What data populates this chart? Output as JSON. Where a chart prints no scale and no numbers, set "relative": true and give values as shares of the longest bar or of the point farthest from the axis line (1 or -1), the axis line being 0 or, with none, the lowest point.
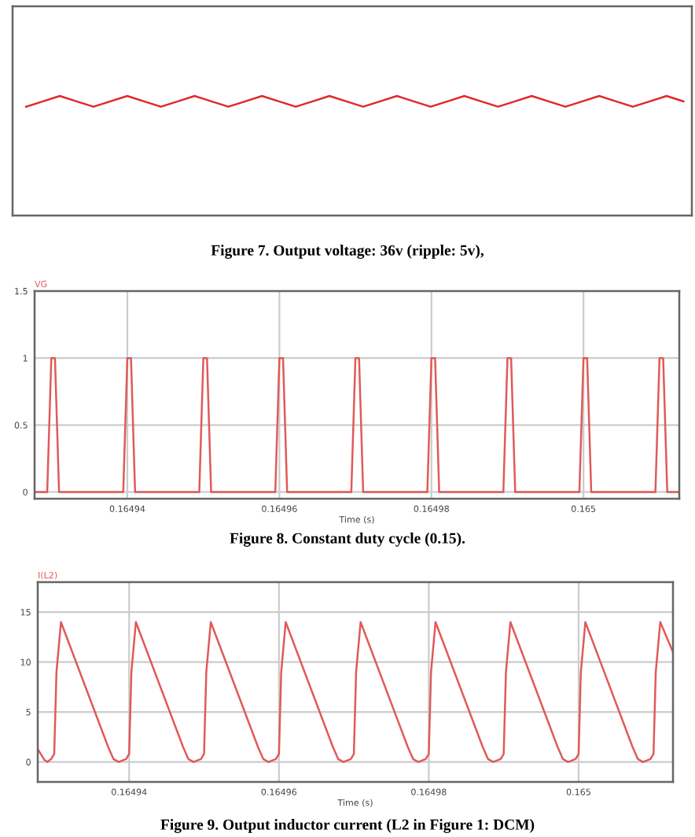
{
  "chart_data": [
    {
      "type": "line",
      "title": "Figure 7. Output voltage: 36v (ripple: 5v),",
      "relative": true,
      "categories": [
        null,
        null,
        null,
        null,
        null,
        null,
        null,
        null,
        null,
        null,
        null,
        null,
        null,
        null,
        null,
        null,
        null,
        null,
        null,
        null,
        null,
        null,
        null,
        null,
        null,
        null,
        null,
        null,
        null,
        null,
        null,
        null,
        null,
        null,
        null,
        null,
        null,
        null,
        null,
        null
      ],
      "series": [
        {
          "color": "#e02828",
          "values": [
            0.91,
            0.955,
            1,
            0.955,
            0.91,
            0.955,
            1,
            0.955,
            0.91,
            0.955,
            1,
            0.955,
            0.91,
            0.955,
            1,
            0.955,
            0.91,
            0.955,
            1,
            0.955,
            0.91,
            0.955,
            1,
            0.955,
            0.91,
            0.955,
            1,
            0.955,
            0.91,
            0.955,
            1,
            0.955,
            0.91,
            0.955,
            1,
            0.955,
            0.91,
            0.955,
            1,
            0.955
          ]
        }
      ]
    },
    {
      "type": "line",
      "title": "Figure 8. Constant duty cycle (0.15).",
      "xlabel": "Time (s)",
      "x": [
        0.1649278,
        0.16492946,
        0.16493,
        0.16493048,
        0.16493102,
        0.16493946,
        0.16494,
        0.16494048,
        0.16494102,
        0.16494946,
        0.16495,
        0.16495048,
        0.16495102,
        0.16495946,
        0.16496,
        0.16496048,
        0.16496102,
        0.16496946,
        0.16497,
        0.16497048,
        0.16497102,
        0.16497946,
        0.16498,
        0.16498048,
        0.16498102,
        0.16498946,
        0.16499,
        0.16499048,
        0.16499102,
        0.16499946,
        0.165,
        0.16500048,
        0.16500102,
        0.16500946,
        0.16501,
        0.16501048,
        0.16501102,
        0.1650126
      ],
      "series": [
        {
          "name": "VG",
          "color": "#e05a5a",
          "values": [
            0,
            0,
            1,
            1,
            0,
            0,
            1,
            1,
            0,
            0,
            1,
            1,
            0,
            0,
            1,
            1,
            0,
            0,
            1,
            1,
            0,
            0,
            1,
            1,
            0,
            0,
            1,
            1,
            0,
            0,
            1,
            1,
            0,
            0,
            1,
            1,
            0,
            0
          ]
        }
      ],
      "xlim": [
        0.1649278,
        0.1650126
      ],
      "xticks": [
        0.16494,
        0.16496,
        0.16498,
        0.165
      ],
      "ylim": [
        -0.05,
        1.5
      ],
      "yticks": [
        0,
        0.5,
        1,
        1.5
      ],
      "grid": true
    },
    {
      "type": "line",
      "title": "Figure 9. Output inductor current (L2 in Figure 1: DCM)",
      "xlabel": "Time (s)",
      "x": [
        0.1649278,
        0.1649287,
        0.1649291,
        0.1649296,
        0.16493,
        0.1649303,
        0.1649309,
        0.1649372,
        0.1649379,
        0.1649386,
        0.1649396,
        0.16494,
        0.1649403,
        0.1649409,
        0.1649472,
        0.1649479,
        0.1649486,
        0.1649496,
        0.16495,
        0.1649503,
        0.1649509,
        0.1649572,
        0.1649579,
        0.1649586,
        0.1649596,
        0.16496,
        0.1649603,
        0.1649609,
        0.1649672,
        0.1649679,
        0.1649686,
        0.1649696,
        0.16497,
        0.1649703,
        0.1649709,
        0.1649772,
        0.1649779,
        0.1649786,
        0.1649796,
        0.16498,
        0.1649803,
        0.1649809,
        0.1649872,
        0.1649879,
        0.1649886,
        0.1649896,
        0.16499,
        0.1649903,
        0.1649909,
        0.1649972,
        0.1649979,
        0.1649986,
        0.1649996,
        0.165,
        0.1650003,
        0.1650009,
        0.1650072,
        0.1650079,
        0.1650086,
        0.1650096,
        0.16501,
        0.1650103,
        0.1650109,
        0.1650126
      ],
      "series": [
        {
          "name": "I(L2)",
          "color": "#e05a5a",
          "values": [
            1.3,
            0.2,
            0,
            0.3,
            0.8,
            9,
            14,
            1.5,
            0.3,
            0,
            0.3,
            0.8,
            9,
            14,
            1.5,
            0.3,
            0,
            0.3,
            0.8,
            9,
            14,
            1.5,
            0.3,
            0,
            0.3,
            0.8,
            9,
            14,
            1.5,
            0.3,
            0,
            0.3,
            0.8,
            9,
            14,
            1.5,
            0.3,
            0,
            0.3,
            0.8,
            9,
            14,
            1.5,
            0.3,
            0,
            0.3,
            0.8,
            9,
            14,
            1.5,
            0.3,
            0,
            0.3,
            0.8,
            9,
            14,
            1.5,
            0.3,
            0,
            0.3,
            0.8,
            9,
            14,
            11
          ]
        }
      ],
      "xlim": [
        0.1649278,
        0.1650126
      ],
      "xticks": [
        0.16494,
        0.16496,
        0.16498,
        0.165
      ],
      "ylim": [
        -2,
        18
      ],
      "yticks": [
        0,
        5,
        10,
        15
      ],
      "grid": true
    }
  ]
}
